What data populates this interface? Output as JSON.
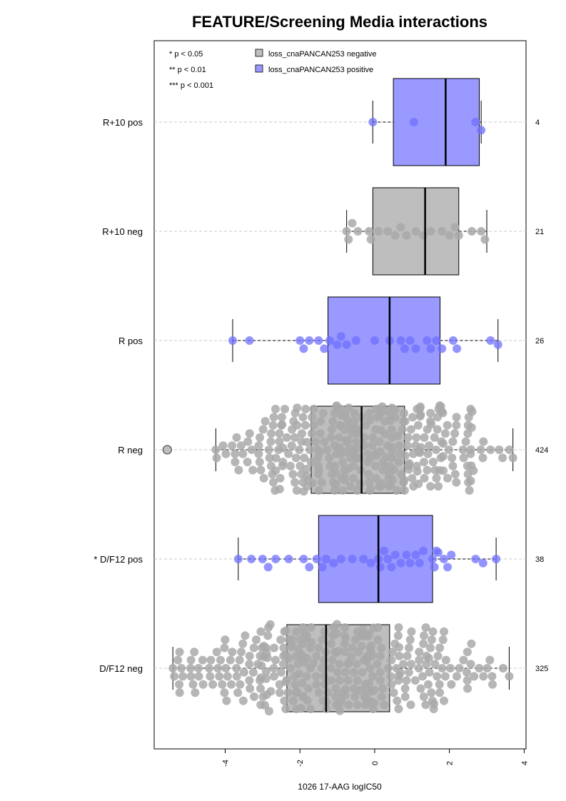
{
  "chart_data": {
    "type": "boxplot",
    "title": "FEATURE/Screening Media interactions",
    "xlabel": "1026 17-AAG logIC50",
    "xlim": [
      -5.9,
      4.05
    ],
    "xticks": [
      -4,
      -2,
      0,
      2,
      4
    ],
    "xtick_labels": [
      "-4",
      "-2",
      "0",
      "2",
      "4"
    ],
    "grid": "horizontal dashed",
    "significance_legend": [
      "* p < 0.05",
      "** p < 0.01",
      "*** p < 0.001"
    ],
    "legend": [
      {
        "label": "loss_cnaPANCAN253 negative",
        "color": "#BEBEBE"
      },
      {
        "label": "loss_cnaPANCAN253 positive",
        "color": "#9999FF"
      }
    ],
    "colors": {
      "negative_box": "#BEBEBE",
      "positive_box": "#9999FF",
      "negative_point": "#A9A9A9",
      "positive_point": "#7070FF",
      "outlier_fill": "#BEBEBE"
    },
    "groups": [
      {
        "label": "R+10 pos",
        "n": "4",
        "status": "positive",
        "q1": 0.5,
        "median": 1.9,
        "q3": 2.8,
        "wlow": -0.05,
        "whigh": 2.85,
        "outliers": [],
        "points": [
          -0.05,
          1.05,
          2.7,
          2.85
        ]
      },
      {
        "label": "R+10 neg",
        "n": "21",
        "status": "negative",
        "q1": -0.05,
        "median": 1.35,
        "q3": 2.25,
        "wlow": -0.75,
        "whigh": 3.0,
        "outliers": [],
        "points": [
          -0.75,
          -0.7,
          -0.6,
          -0.45,
          -0.15,
          -0.1,
          0.1,
          0.35,
          0.55,
          0.7,
          0.85,
          1.1,
          1.3,
          1.5,
          1.8,
          2.0,
          2.15,
          2.25,
          2.6,
          2.85,
          2.95
        ]
      },
      {
        "label": "R pos",
        "n": "26",
        "status": "positive",
        "q1": -1.25,
        "median": 0.4,
        "q3": 1.75,
        "wlow": -3.8,
        "whigh": 3.3,
        "outliers": [],
        "points": [
          -3.8,
          -3.35,
          -2.0,
          -1.9,
          -1.75,
          -1.5,
          -1.35,
          -1.2,
          -1.0,
          -0.9,
          -0.75,
          -0.5,
          0.0,
          0.4,
          0.7,
          0.8,
          0.95,
          1.1,
          1.4,
          1.5,
          1.65,
          1.8,
          2.1,
          2.2,
          3.1,
          3.3
        ]
      },
      {
        "label": "R neg",
        "n": "424",
        "status": "negative",
        "q1": -1.7,
        "median": -0.35,
        "q3": 0.8,
        "wlow": -4.25,
        "whigh": 3.7,
        "outliers": [
          -5.55
        ],
        "points": []
      },
      {
        "label": "* D/F12 pos",
        "n": "38",
        "status": "positive",
        "q1": -1.5,
        "median": 0.1,
        "q3": 1.55,
        "wlow": -3.65,
        "whigh": 3.25,
        "outliers": [],
        "points": [
          -3.65,
          -3.3,
          -3.0,
          -2.85,
          -2.65,
          -2.3,
          -1.9,
          -1.75,
          -1.55,
          -1.4,
          -1.3,
          -1.1,
          -0.9,
          -0.6,
          -0.3,
          -0.1,
          0.1,
          0.15,
          0.25,
          0.35,
          0.45,
          0.55,
          0.7,
          0.85,
          0.95,
          1.1,
          1.2,
          1.3,
          1.55,
          1.6,
          1.65,
          1.7,
          1.85,
          1.95,
          2.05,
          2.7,
          2.9,
          3.25
        ]
      },
      {
        "label": "D/F12 neg",
        "n": "325",
        "status": "negative",
        "q1": -2.35,
        "median": -1.3,
        "q3": 0.4,
        "wlow": -5.4,
        "whigh": 3.6,
        "outliers": [],
        "points": []
      }
    ]
  }
}
